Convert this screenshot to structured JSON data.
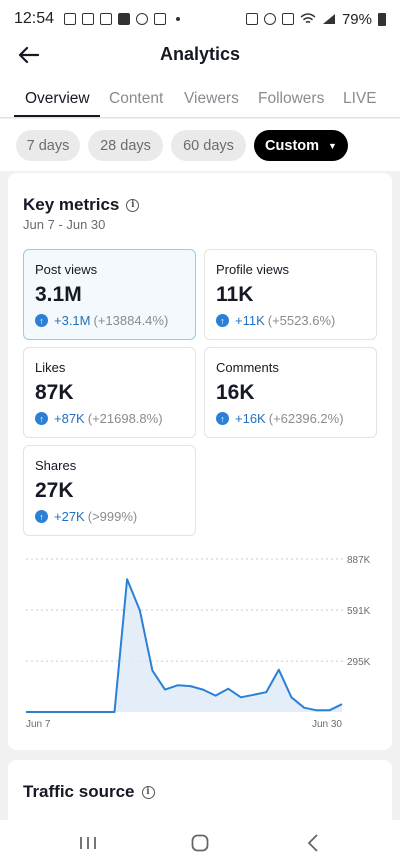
{
  "status_bar": {
    "time": "12:54",
    "battery": "79%"
  },
  "header": {
    "title": "Analytics"
  },
  "tabs": [
    {
      "label": "Overview",
      "active": true
    },
    {
      "label": "Content"
    },
    {
      "label": "Viewers"
    },
    {
      "label": "Followers"
    },
    {
      "label": "LIVE"
    }
  ],
  "ranges": [
    {
      "label": "7 days"
    },
    {
      "label": "28 days"
    },
    {
      "label": "60 days"
    },
    {
      "label": "Custom",
      "active": true
    }
  ],
  "key_metrics": {
    "title": "Key metrics",
    "date_range": "Jun 7 - Jun 30",
    "metrics": [
      {
        "label": "Post views",
        "value": "3.1M",
        "delta": "+3.1M",
        "delta_pct": "(+13884.4%)",
        "selected": true
      },
      {
        "label": "Profile views",
        "value": "11K",
        "delta": "+11K",
        "delta_pct": "(+5523.6%)"
      },
      {
        "label": "Likes",
        "value": "87K",
        "delta": "+87K",
        "delta_pct": "(+21698.8%)"
      },
      {
        "label": "Comments",
        "value": "16K",
        "delta": "+16K",
        "delta_pct": "(+62396.2%)"
      },
      {
        "label": "Shares",
        "value": "27K",
        "delta": "+27K",
        "delta_pct": "(>999%)"
      }
    ]
  },
  "chart_data": {
    "type": "area",
    "x_tick_labels": [
      "Jun 7",
      "Jun 30"
    ],
    "y_ticks": [
      295,
      591,
      887
    ],
    "y_tick_labels": [
      "295K",
      "591K",
      "887K"
    ],
    "ylim": [
      0,
      887
    ],
    "series": [
      {
        "values": [
          0,
          0,
          0,
          0,
          0,
          0,
          0,
          0,
          770,
          590,
          240,
          130,
          155,
          150,
          130,
          95,
          135,
          85,
          100,
          115,
          245,
          85,
          25,
          10,
          10,
          45
        ]
      }
    ],
    "colors": {
      "line": "#2b80d6",
      "fill": "#dceaf6",
      "grid": "#c9c9cc"
    }
  },
  "traffic": {
    "title": "Traffic source"
  }
}
